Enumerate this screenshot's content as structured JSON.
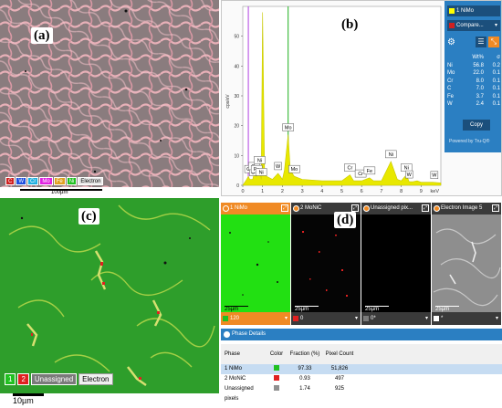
{
  "panel_a": {
    "label": "(a)",
    "legend": [
      "C",
      "W",
      "Cr",
      "Mo",
      "Fe",
      "Ni",
      "Electron"
    ],
    "legend_colors": [
      "#d02020",
      "#2050e0",
      "#20b0e0",
      "#e020e0",
      "#e0a020",
      "#20c020",
      "#9a9a9a"
    ],
    "scale": "100µm"
  },
  "panel_b": {
    "label": "(b)",
    "phase_selected": "1 NiMo",
    "compare_label": "Compare...",
    "table_headers": [
      "",
      "Wt%",
      "σ"
    ],
    "table_rows": [
      [
        "Ni",
        "56.8",
        "0.2"
      ],
      [
        "Mo",
        "22.0",
        "0.1"
      ],
      [
        "Cr",
        "8.0",
        "0.1"
      ],
      [
        "C",
        "7.0",
        "0.1"
      ],
      [
        "Fe",
        "3.7",
        "0.1"
      ],
      [
        "W",
        "2.4",
        "0.1"
      ]
    ],
    "copy_label": "Copy",
    "powered_by": "Powered by Tru-Q®",
    "ylabel": "cps/eV",
    "xunit": "keV"
  },
  "chart_data": {
    "type": "line",
    "title": "",
    "xlabel": "keV",
    "ylabel": "cps/eV",
    "xlim": [
      0,
      10
    ],
    "ylim": [
      0,
      60
    ],
    "x_ticks": [
      0,
      1,
      2,
      3,
      4,
      5,
      6,
      7,
      8,
      9
    ],
    "y_ticks": [
      0,
      10,
      20,
      30,
      40,
      50
    ],
    "series": [
      {
        "x": [
          0.0,
          0.1,
          0.2,
          0.28,
          0.35,
          0.5,
          0.57,
          0.7,
          0.85,
          0.93,
          1.0,
          1.1,
          1.2,
          1.5,
          1.78,
          1.9,
          2.0,
          2.1,
          2.29,
          2.4,
          2.6,
          3.0,
          4.0,
          5.0,
          5.41,
          5.6,
          6.0,
          6.4,
          6.6,
          7.0,
          7.48,
          7.8,
          8.0,
          8.26,
          8.4,
          8.6,
          8.8,
          9.0,
          9.3,
          9.6,
          10.0
        ],
        "y": [
          0,
          1,
          2,
          3,
          2,
          2,
          4,
          3,
          6,
          2,
          58,
          4,
          3,
          2,
          4,
          3,
          2,
          5,
          17,
          5,
          3,
          2,
          1.5,
          1.5,
          3.5,
          1.5,
          1.5,
          2.5,
          1.5,
          1.5,
          8,
          2,
          1.5,
          3.5,
          1.2,
          1.2,
          1.5,
          1,
          1,
          1,
          0.8
        ],
        "color": "#e8e800"
      }
    ],
    "markers": [
      {
        "label": "C",
        "x": 0.28
      },
      {
        "label": "O",
        "x": 0.52
      },
      {
        "label": "Cr",
        "x": 0.57
      },
      {
        "label": "Fe",
        "x": 0.7
      },
      {
        "label": "Ni",
        "x": 0.85
      },
      {
        "label": "Ni",
        "x": 0.93
      },
      {
        "label": "W",
        "x": 1.78
      },
      {
        "label": "Mo",
        "x": 2.29
      },
      {
        "label": "Mo",
        "x": 2.6
      },
      {
        "label": "Cr",
        "x": 5.41
      },
      {
        "label": "Cr",
        "x": 5.95
      },
      {
        "label": "Fe",
        "x": 6.4
      },
      {
        "label": "Ni",
        "x": 7.48
      },
      {
        "label": "Ni",
        "x": 8.26
      },
      {
        "label": "W",
        "x": 8.4
      },
      {
        "label": "W",
        "x": 9.67
      }
    ],
    "vlines": [
      {
        "x": 0.28,
        "color": "#b040e0"
      },
      {
        "x": 2.29,
        "color": "#20b020"
      }
    ]
  },
  "panel_c": {
    "label": "(c)",
    "legend": [
      {
        "text": "1",
        "color": "#20c020"
      },
      {
        "text": "2",
        "color": "#e02020"
      },
      {
        "text": "Unassigned",
        "color": "#7a7a7a"
      },
      {
        "text": "Electron",
        "color": "#f0f0f0"
      }
    ],
    "scale": "10µm"
  },
  "panel_d": {
    "label": "(d)",
    "tiles": [
      {
        "title": "1 NiMo",
        "head_color": "#f08a24",
        "footer": "120",
        "swatch": "#20c020",
        "scale": "25µm"
      },
      {
        "title": "2 MoNiC",
        "head_color": "#3a3a3a",
        "footer": "0",
        "swatch": "#e02020",
        "scale": "25µm"
      },
      {
        "title": "Unassigned pix...",
        "head_color": "#3a3a3a",
        "footer": "0*",
        "swatch": "#7a7a7a",
        "scale": "25µm"
      },
      {
        "title": "Electron Image 5",
        "head_color": "#3a3a3a",
        "footer": "*",
        "swatch": "#ffffff",
        "scale": "25µm"
      }
    ],
    "phase_details_title": "Phase Details",
    "table_headers": [
      "Phase",
      "Color",
      "Fraction (%)",
      "Pixel Count"
    ],
    "table_rows": [
      {
        "phase": "1 NiMo",
        "color": "#20c020",
        "fraction": "97.33",
        "count": "51,826"
      },
      {
        "phase": "2 MoNiC",
        "color": "#e02020",
        "fraction": "0.93",
        "count": "497"
      },
      {
        "phase": "Unassigned pixels",
        "color": "#909090",
        "fraction": "1.74",
        "count": "925"
      }
    ]
  }
}
